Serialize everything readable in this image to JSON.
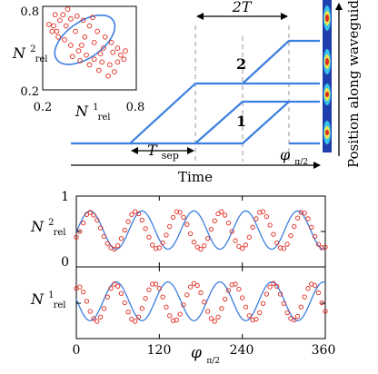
{
  "colors": {
    "blue": "#3b7fe0",
    "red": "#e0281e",
    "gray": "#999999",
    "black": "#000000"
  },
  "inset": {
    "ylabel_main": "N",
    "ylabel_sup": "2",
    "ylabel_sub": "rel",
    "xlabel_main": "N",
    "xlabel_sup": "1",
    "xlabel_sub": "rel",
    "xticks": [
      "0.2",
      "0.8"
    ],
    "yticks": [
      "0.8",
      "0.2"
    ]
  },
  "schematic": {
    "label_2T": "2T",
    "label_tsep_main": "T",
    "label_tsep_sub": "sep",
    "label_time": "Time",
    "label_phi": "φ",
    "label_phi_sub": "π/2",
    "path2_label": "2",
    "path1_label": "1",
    "side_label": "Position along waveguide"
  },
  "lower": {
    "xticks": [
      "0",
      "120",
      "240",
      "360"
    ],
    "xlabel_main": "φ",
    "xlabel_sub": "π/2",
    "top_yticks": [
      "1",
      "0"
    ],
    "top_ylabel": {
      "main": "N",
      "sup": "2",
      "sub": "rel"
    },
    "bot_ylabel": {
      "main": "N",
      "sup": "1",
      "sub": "rel"
    }
  },
  "chart_data": [
    {
      "type": "scatter",
      "title": "",
      "xlabel": "N^1_rel",
      "ylabel": "N^2_rel",
      "xlim": [
        0.2,
        0.8
      ],
      "ylim": [
        0.2,
        0.8
      ],
      "ellipse": {
        "center": [
          0.47,
          0.56
        ],
        "rx": 0.22,
        "ry": 0.13,
        "tilt_deg": -35
      },
      "points": [
        [
          0.31,
          0.7
        ],
        [
          0.27,
          0.66
        ],
        [
          0.29,
          0.62
        ],
        [
          0.33,
          0.74
        ],
        [
          0.38,
          0.71
        ],
        [
          0.42,
          0.73
        ],
        [
          0.46,
          0.7
        ],
        [
          0.5,
          0.66
        ],
        [
          0.55,
          0.62
        ],
        [
          0.6,
          0.58
        ],
        [
          0.64,
          0.54
        ],
        [
          0.68,
          0.5
        ],
        [
          0.7,
          0.45
        ],
        [
          0.68,
          0.4
        ],
        [
          0.63,
          0.38
        ],
        [
          0.58,
          0.4
        ],
        [
          0.53,
          0.42
        ],
        [
          0.48,
          0.45
        ],
        [
          0.43,
          0.48
        ],
        [
          0.38,
          0.52
        ],
        [
          0.34,
          0.56
        ],
        [
          0.3,
          0.58
        ],
        [
          0.26,
          0.62
        ],
        [
          0.24,
          0.67
        ],
        [
          0.35,
          0.66
        ],
        [
          0.41,
          0.62
        ],
        [
          0.47,
          0.58
        ],
        [
          0.53,
          0.54
        ],
        [
          0.59,
          0.5
        ],
        [
          0.65,
          0.47
        ],
        [
          0.72,
          0.42
        ],
        [
          0.66,
          0.33
        ],
        [
          0.56,
          0.34
        ],
        [
          0.5,
          0.38
        ],
        [
          0.44,
          0.41
        ],
        [
          0.39,
          0.44
        ],
        [
          0.52,
          0.72
        ],
        [
          0.36,
          0.78
        ],
        [
          0.28,
          0.74
        ],
        [
          0.62,
          0.3
        ],
        [
          0.73,
          0.48
        ],
        [
          0.45,
          0.52
        ],
        [
          0.57,
          0.46
        ]
      ]
    },
    {
      "type": "line",
      "title": "",
      "xlabel": "φ_π/2",
      "ylabel": "N^2_rel",
      "xlim": [
        0,
        360
      ],
      "ylim": [
        0,
        1
      ],
      "fit": {
        "type": "cosine",
        "mean": 0.52,
        "amplitude": 0.27,
        "period": 75,
        "phase_deg": 20
      },
      "points": [
        [
          0,
          0.42
        ],
        [
          5,
          0.5
        ],
        [
          10,
          0.62
        ],
        [
          15,
          0.74
        ],
        [
          20,
          0.77
        ],
        [
          25,
          0.73
        ],
        [
          30,
          0.66
        ],
        [
          35,
          0.55
        ],
        [
          40,
          0.43
        ],
        [
          45,
          0.33
        ],
        [
          50,
          0.27
        ],
        [
          55,
          0.25
        ],
        [
          60,
          0.3
        ],
        [
          65,
          0.4
        ],
        [
          70,
          0.52
        ],
        [
          75,
          0.64
        ],
        [
          80,
          0.74
        ],
        [
          85,
          0.78
        ],
        [
          90,
          0.75
        ],
        [
          95,
          0.66
        ],
        [
          100,
          0.54
        ],
        [
          105,
          0.42
        ],
        [
          110,
          0.31
        ],
        [
          115,
          0.26
        ],
        [
          120,
          0.27
        ],
        [
          125,
          0.34
        ],
        [
          130,
          0.45
        ],
        [
          135,
          0.57
        ],
        [
          140,
          0.7
        ],
        [
          145,
          0.78
        ],
        [
          150,
          0.77
        ],
        [
          155,
          0.7
        ],
        [
          160,
          0.6
        ],
        [
          165,
          0.47
        ],
        [
          170,
          0.35
        ],
        [
          175,
          0.28
        ],
        [
          180,
          0.25
        ],
        [
          185,
          0.3
        ],
        [
          190,
          0.4
        ],
        [
          195,
          0.53
        ],
        [
          200,
          0.65
        ],
        [
          205,
          0.75
        ],
        [
          210,
          0.78
        ],
        [
          215,
          0.73
        ],
        [
          220,
          0.62
        ],
        [
          225,
          0.5
        ],
        [
          230,
          0.37
        ],
        [
          235,
          0.29
        ],
        [
          240,
          0.26
        ],
        [
          245,
          0.31
        ],
        [
          250,
          0.42
        ],
        [
          255,
          0.56
        ],
        [
          260,
          0.68
        ],
        [
          265,
          0.77
        ],
        [
          270,
          0.78
        ],
        [
          275,
          0.71
        ],
        [
          280,
          0.59
        ],
        [
          285,
          0.46
        ],
        [
          290,
          0.34
        ],
        [
          295,
          0.27
        ],
        [
          300,
          0.26
        ],
        [
          305,
          0.32
        ],
        [
          310,
          0.44
        ],
        [
          315,
          0.57
        ],
        [
          320,
          0.69
        ],
        [
          325,
          0.77
        ],
        [
          330,
          0.76
        ],
        [
          335,
          0.68
        ],
        [
          340,
          0.56
        ],
        [
          345,
          0.43
        ],
        [
          350,
          0.32
        ],
        [
          355,
          0.27
        ],
        [
          360,
          0.28
        ]
      ]
    },
    {
      "type": "line",
      "title": "",
      "xlabel": "φ_π/2",
      "ylabel": "N^1_rel",
      "xlim": [
        0,
        360
      ],
      "ylim": [
        0,
        1
      ],
      "fit": {
        "type": "cosine",
        "mean": 0.52,
        "amplitude": -0.27,
        "period": 75,
        "phase_deg": 20
      },
      "points": [
        [
          0,
          0.7
        ],
        [
          5,
          0.72
        ],
        [
          10,
          0.65
        ],
        [
          15,
          0.52
        ],
        [
          20,
          0.38
        ],
        [
          25,
          0.28
        ],
        [
          30,
          0.24
        ],
        [
          35,
          0.3
        ],
        [
          40,
          0.42
        ],
        [
          45,
          0.58
        ],
        [
          50,
          0.7
        ],
        [
          55,
          0.76
        ],
        [
          60,
          0.73
        ],
        [
          65,
          0.63
        ],
        [
          70,
          0.5
        ],
        [
          75,
          0.37
        ],
        [
          80,
          0.27
        ],
        [
          85,
          0.24
        ],
        [
          90,
          0.3
        ],
        [
          95,
          0.42
        ],
        [
          100,
          0.56
        ],
        [
          105,
          0.68
        ],
        [
          110,
          0.76
        ],
        [
          115,
          0.76
        ],
        [
          120,
          0.7
        ],
        [
          125,
          0.58
        ],
        [
          130,
          0.44
        ],
        [
          135,
          0.32
        ],
        [
          140,
          0.25
        ],
        [
          145,
          0.26
        ],
        [
          150,
          0.34
        ],
        [
          155,
          0.47
        ],
        [
          160,
          0.61
        ],
        [
          165,
          0.72
        ],
        [
          170,
          0.77
        ],
        [
          175,
          0.74
        ],
        [
          180,
          0.64
        ],
        [
          185,
          0.51
        ],
        [
          190,
          0.38
        ],
        [
          195,
          0.28
        ],
        [
          200,
          0.24
        ],
        [
          205,
          0.3
        ],
        [
          210,
          0.42
        ],
        [
          215,
          0.55
        ],
        [
          220,
          0.67
        ],
        [
          225,
          0.75
        ],
        [
          230,
          0.76
        ],
        [
          235,
          0.69
        ],
        [
          240,
          0.57
        ],
        [
          245,
          0.44
        ],
        [
          250,
          0.32
        ],
        [
          255,
          0.26
        ],
        [
          260,
          0.27
        ],
        [
          265,
          0.36
        ],
        [
          270,
          0.49
        ],
        [
          275,
          0.62
        ],
        [
          280,
          0.72
        ],
        [
          285,
          0.77
        ],
        [
          290,
          0.73
        ],
        [
          295,
          0.62
        ],
        [
          300,
          0.49
        ],
        [
          305,
          0.36
        ],
        [
          310,
          0.28
        ],
        [
          315,
          0.26
        ],
        [
          320,
          0.31
        ],
        [
          325,
          0.44
        ],
        [
          330,
          0.58
        ],
        [
          335,
          0.7
        ],
        [
          340,
          0.76
        ],
        [
          345,
          0.74
        ],
        [
          350,
          0.64
        ],
        [
          355,
          0.5
        ],
        [
          360,
          0.38
        ]
      ]
    }
  ]
}
